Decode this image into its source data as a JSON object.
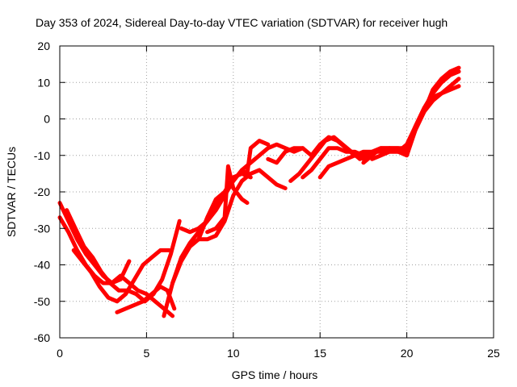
{
  "chart_data": {
    "type": "line",
    "title": "Day 353 of 2024, Sidereal Day-to-day VTEC variation (SDTVAR) for receiver hugh",
    "xlabel": "GPS time / hours",
    "ylabel": "SDTVAR / TECUs",
    "xlim": [
      0,
      25
    ],
    "ylim": [
      -60,
      20
    ],
    "xticks": [
      0,
      5,
      10,
      15,
      20,
      25
    ],
    "yticks": [
      -60,
      -50,
      -40,
      -30,
      -20,
      -10,
      0,
      10,
      20
    ],
    "grid": true,
    "legend": "none",
    "color": "#ff0000",
    "series": [
      {
        "x": [
          0.0,
          0.5,
          1.0,
          1.5,
          2.0,
          2.5,
          3.0,
          3.5,
          4.0
        ],
        "y": [
          -23,
          -28,
          -33,
          -37,
          -40,
          -43,
          -45,
          -44,
          -39
        ]
      },
      {
        "x": [
          0.0,
          0.5,
          1.0,
          1.5,
          2.0,
          2.5,
          3.0,
          3.5,
          4.0,
          4.5,
          5.0,
          5.5,
          6.0,
          6.5
        ],
        "y": [
          -27,
          -31,
          -36,
          -40,
          -43,
          -45,
          -45,
          -43,
          -45,
          -47,
          -48,
          -50,
          -52,
          -54
        ]
      },
      {
        "x": [
          0.8,
          1.3,
          1.8,
          2.3,
          2.8,
          3.3,
          3.8,
          4.3,
          4.8,
          5.3,
          5.8,
          6.3
        ],
        "y": [
          -36,
          -39,
          -42,
          -46,
          -49,
          -50,
          -48,
          -44,
          -40,
          -38,
          -36,
          -36
        ]
      },
      {
        "x": [
          0.4,
          0.9,
          1.4,
          1.9,
          2.4,
          2.9,
          3.4,
          3.9,
          4.4,
          4.9,
          5.4,
          5.9,
          6.4,
          6.9
        ],
        "y": [
          -25,
          -30,
          -35,
          -38,
          -42,
          -45,
          -47,
          -47,
          -48,
          -50,
          -48,
          -44,
          -37,
          -28
        ]
      },
      {
        "x": [
          3.3,
          3.8,
          4.3,
          4.8,
          5.3,
          5.8,
          6.2,
          6.6
        ],
        "y": [
          -53,
          -52,
          -51,
          -50,
          -48,
          -46,
          -47,
          -52
        ]
      },
      {
        "x": [
          6.0,
          6.5,
          7.0,
          7.5,
          8.0,
          8.5,
          9.0,
          9.5,
          10.0,
          10.5,
          11.0
        ],
        "y": [
          -54,
          -45,
          -38,
          -34,
          -31,
          -28,
          -23,
          -20,
          -16,
          -15,
          -16
        ]
      },
      {
        "x": [
          6.5,
          7.0,
          7.5,
          8.0,
          8.5,
          9.0,
          9.5,
          10.0,
          10.5,
          11.0,
          11.5,
          12.0,
          12.5,
          13.0
        ],
        "y": [
          -45,
          -39,
          -35,
          -33,
          -33,
          -32,
          -28,
          -21,
          -17,
          -15,
          -14,
          -16,
          -18,
          -19
        ]
      },
      {
        "x": [
          7.0,
          7.5,
          8.0,
          8.5,
          9.0,
          9.5,
          10.0,
          10.5,
          11.0,
          11.5,
          12.0,
          12.5,
          13.0,
          13.5,
          14.0
        ],
        "y": [
          -30,
          -31,
          -30,
          -28,
          -25,
          -21,
          -17,
          -14,
          -12,
          -10,
          -8,
          -7,
          -8,
          -9,
          -8
        ]
      },
      {
        "x": [
          8.0,
          8.5,
          9.0,
          9.5,
          10.0,
          10.5,
          10.8,
          11.0,
          11.5,
          12.0
        ],
        "y": [
          -33,
          -27,
          -22,
          -20,
          -17,
          -14,
          -15,
          -8,
          -6,
          -7
        ]
      },
      {
        "x": [
          8.5,
          9.0,
          9.5,
          9.7,
          10.0,
          10.5,
          10.8
        ],
        "y": [
          -31,
          -30,
          -27,
          -13,
          -19,
          -22,
          -23
        ]
      },
      {
        "x": [
          12.0,
          12.5,
          13.0,
          13.5,
          14.0,
          14.5,
          15.0,
          15.5,
          16.0,
          16.5,
          17.0,
          17.5,
          18.0
        ],
        "y": [
          -11,
          -12,
          -9,
          -8,
          -8,
          -10,
          -7,
          -5,
          -6,
          -8,
          -10,
          -11,
          -10
        ]
      },
      {
        "x": [
          13.3,
          13.8,
          14.3,
          14.8,
          15.3,
          15.8,
          16.3,
          16.8,
          17.3
        ],
        "y": [
          -17,
          -15,
          -12,
          -9,
          -6,
          -5,
          -7,
          -9,
          -11
        ]
      },
      {
        "x": [
          14.0,
          14.5,
          15.0,
          15.5,
          16.0,
          16.5,
          17.0,
          17.5,
          18.0,
          18.5,
          19.0,
          19.5,
          20.0,
          20.5,
          21.0,
          21.5,
          22.0,
          22.5,
          23.0
        ],
        "y": [
          -16,
          -14,
          -11,
          -8,
          -8,
          -9,
          -9,
          -10,
          -9,
          -8,
          -8,
          -9,
          -7,
          -2,
          3,
          6,
          7,
          8,
          9
        ]
      },
      {
        "x": [
          15.0,
          15.5,
          16.0,
          16.5,
          17.0,
          17.5,
          18.0,
          18.5,
          19.0,
          19.5,
          20.0,
          20.5,
          21.0,
          21.5,
          22.0,
          22.5,
          23.0
        ],
        "y": [
          -16,
          -13,
          -12,
          -11,
          -10,
          -9,
          -9,
          -9,
          -8,
          -8,
          -9,
          -3,
          2,
          5,
          7,
          9,
          11
        ]
      },
      {
        "x": [
          17.5,
          18.0,
          18.5,
          19.0,
          19.5,
          20.0,
          20.5,
          21.0,
          21.5,
          22.0,
          22.5,
          23.0
        ],
        "y": [
          -12,
          -10,
          -8,
          -8,
          -8,
          -8,
          -2,
          3,
          7,
          10,
          12,
          13
        ]
      },
      {
        "x": [
          18.0,
          18.5,
          19.0,
          19.5,
          20.0,
          20.5,
          21.0,
          21.5,
          22.0,
          22.5,
          23.0
        ],
        "y": [
          -11,
          -10,
          -9,
          -9,
          -10,
          -3,
          2,
          8,
          11,
          13,
          14
        ]
      }
    ]
  }
}
